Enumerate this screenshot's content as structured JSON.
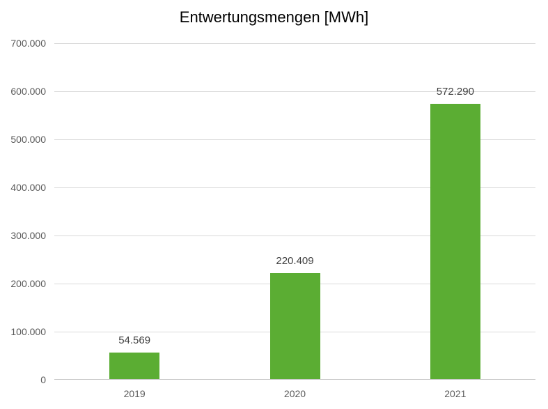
{
  "chart": {
    "colors": {
      "bar": "#5BAD33",
      "gridline": "#D9D9D9",
      "axis_line": "#C6C6C6",
      "tick_label": "#595959",
      "data_label": "#3F3F3F",
      "title_color": "#000000",
      "background": "#FFFFFF"
    }
  },
  "chart_data": {
    "type": "bar",
    "title": "Entwertungsmengen [MWh]",
    "categories": [
      "2019",
      "2020",
      "2021"
    ],
    "values": [
      54569,
      220409,
      572290
    ],
    "value_labels": [
      "54.569",
      "220.409",
      "572.290"
    ],
    "xlabel": "",
    "ylabel": "",
    "ylim": [
      0,
      700000
    ],
    "ytick_interval": 100000,
    "ytick_labels": [
      "0",
      "100.000",
      "200.000",
      "300.000",
      "400.000",
      "500.000",
      "600.000",
      "700.000"
    ],
    "grid": true,
    "legend": false,
    "legend_position": "none",
    "data_label_position": "outside-end"
  }
}
